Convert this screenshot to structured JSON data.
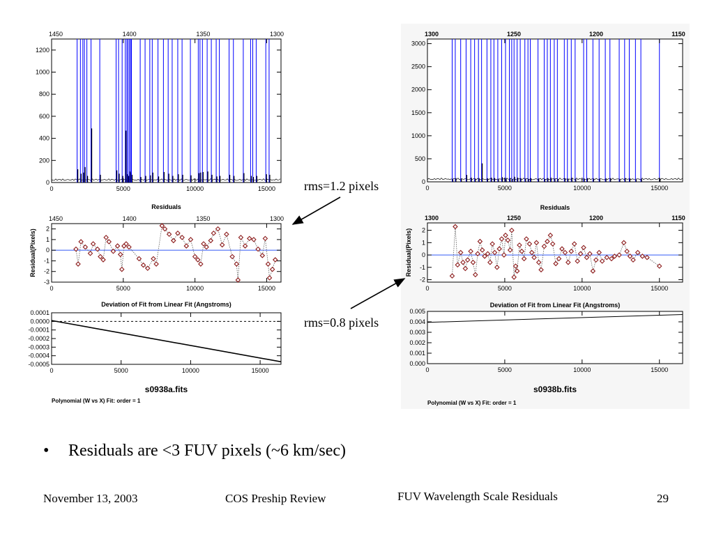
{
  "slide": {
    "bullet": "Residuals are <3 FUV pixels (~6 km/sec)",
    "bullet_icon": "bullet-dot",
    "footer_date": "November 13, 2003",
    "footer_event": "COS Preship Review",
    "footer_title": "FUV Wavelength Scale Residuals",
    "page_number": "29",
    "rms_a": "rms=1.2 pixels",
    "rms_b": "rms=0.8 pixels"
  },
  "colors": {
    "spectrum_line": "#0000ff",
    "zero_line": "#4a6cf7",
    "marker_edge": "#8b1a1a",
    "marker_fill": "#ffffff",
    "connect": "#555555",
    "text": "#000000"
  },
  "chart_data": [
    {
      "id": "a",
      "type": "line",
      "panel": "spectrum",
      "xlim": [
        0,
        16000
      ],
      "ylim": [
        0,
        1300
      ],
      "xticks": [
        0,
        5000,
        10000,
        15000
      ],
      "yticks": [
        0,
        200,
        400,
        600,
        800,
        1000,
        1200
      ],
      "top_axis_ticks": [
        1450,
        1400,
        1350,
        1300
      ],
      "top_axis_label": "Residuals",
      "lines_x": [
        1780,
        2010,
        2180,
        2290,
        2460,
        2750,
        3360,
        4500,
        4670,
        4920,
        5140,
        5250,
        5330,
        5430,
        5510,
        5570,
        6180,
        6520,
        6850,
        7020,
        7420,
        7800,
        8130,
        8410,
        8800,
        9100,
        9680,
        10230,
        10350,
        10520,
        10850,
        11140,
        11480,
        11700,
        12380,
        12680,
        13370,
        13880,
        14030,
        14270,
        14940,
        15170
      ],
      "peak_heights": [
        120,
        80,
        90,
        140,
        60,
        490,
        70,
        110,
        80,
        60,
        470,
        75,
        60,
        100,
        90,
        70,
        50,
        60,
        65,
        90,
        55,
        95,
        80,
        60,
        75,
        70,
        65,
        85,
        90,
        95,
        100,
        70,
        55,
        60,
        70,
        60,
        85,
        60,
        50,
        60,
        75,
        70
      ]
    },
    {
      "id": "a",
      "type": "scatter",
      "panel": "residuals",
      "title": "Deviation of Fit from Linear Fit (Angstroms)",
      "ylabel": "Residual(Pixels)",
      "xlim": [
        0,
        16000
      ],
      "ylim": [
        -3,
        2.5
      ],
      "xticks": [
        0,
        5000,
        10000,
        15000
      ],
      "yticks": [
        -3,
        -2,
        -1,
        0,
        1,
        2
      ],
      "top_axis_ticks": [
        1450,
        1400,
        1350,
        1300
      ],
      "points": [
        [
          1700,
          0.1
        ],
        [
          1850,
          -1.3
        ],
        [
          2050,
          0.8
        ],
        [
          2350,
          0.3
        ],
        [
          2700,
          -0.3
        ],
        [
          2900,
          0.6
        ],
        [
          3200,
          0.1
        ],
        [
          3400,
          -0.6
        ],
        [
          3600,
          -0.9
        ],
        [
          3800,
          1.2
        ],
        [
          4000,
          0.8
        ],
        [
          4300,
          -0.1
        ],
        [
          4600,
          0.4
        ],
        [
          4800,
          -0.4
        ],
        [
          4900,
          -1.8
        ],
        [
          5050,
          0.4
        ],
        [
          5200,
          0.6
        ],
        [
          5400,
          0.3
        ],
        [
          6100,
          -0.8
        ],
        [
          6400,
          -1.4
        ],
        [
          6700,
          -1.7
        ],
        [
          7100,
          -0.8
        ],
        [
          7300,
          -1.3
        ],
        [
          7700,
          2.3
        ],
        [
          7900,
          2.0
        ],
        [
          8200,
          1.5
        ],
        [
          8500,
          0.9
        ],
        [
          8800,
          1.6
        ],
        [
          9100,
          1.2
        ],
        [
          9400,
          0.4
        ],
        [
          9700,
          1.0
        ],
        [
          10000,
          -0.6
        ],
        [
          10200,
          -0.9
        ],
        [
          10400,
          -1.3
        ],
        [
          10600,
          0.6
        ],
        [
          10800,
          0.3
        ],
        [
          11100,
          0.9
        ],
        [
          11300,
          1.6
        ],
        [
          11600,
          2.0
        ],
        [
          11900,
          0.5
        ],
        [
          12200,
          1.5
        ],
        [
          12600,
          -0.6
        ],
        [
          12900,
          -1.3
        ],
        [
          13000,
          -2.8
        ],
        [
          13200,
          1.2
        ],
        [
          13500,
          0.4
        ],
        [
          13800,
          1.1
        ],
        [
          14100,
          1.0
        ],
        [
          14400,
          0.1
        ],
        [
          14700,
          -0.5
        ],
        [
          14900,
          1.1
        ],
        [
          15100,
          -1.3
        ],
        [
          15200,
          -2.6
        ],
        [
          15400,
          -1.8
        ],
        [
          15600,
          -0.9
        ]
      ]
    },
    {
      "id": "a",
      "type": "line",
      "panel": "deviation",
      "xlim": [
        0,
        16500
      ],
      "ylim": [
        -0.0005,
        0.0001
      ],
      "xticks": [
        0,
        5000,
        10000,
        15000
      ],
      "yticks": [
        0.0001,
        0,
        -0.0001,
        -0.0002,
        -0.0003,
        -0.0004,
        -0.0005
      ],
      "ytick_labels": [
        "0.0001",
        "0.0000",
        "-0.0001",
        "-0.0002",
        "-0.0003",
        "-0.0004",
        "-0.0005"
      ],
      "line": [
        [
          0,
          1e-05
        ],
        [
          16500,
          -0.00047
        ]
      ],
      "dashed_zero": 0,
      "xlabel": "s0938a.fits",
      "caption": "Polynomial (W vs X) Fit: order = 1"
    },
    {
      "id": "b",
      "type": "line",
      "panel": "spectrum",
      "xlim": [
        0,
        16500
      ],
      "ylim": [
        0,
        3100
      ],
      "xticks": [
        0,
        5000,
        10000,
        15000
      ],
      "yticks": [
        0,
        500,
        1000,
        1500,
        2000,
        2500,
        3000
      ],
      "top_axis_ticks": [
        1300,
        1250,
        1200,
        1150
      ],
      "top_axis_label": "Residuals",
      "lines_x": [
        1600,
        1800,
        2150,
        2500,
        2800,
        3050,
        3300,
        3500,
        3850,
        4100,
        4300,
        4550,
        4800,
        5050,
        5300,
        5450,
        5600,
        5800,
        6000,
        6300,
        6500,
        6650,
        7150,
        7550,
        7750,
        7950,
        8200,
        8400,
        8850,
        9050,
        9300,
        9550,
        10100,
        10300,
        10700,
        11100,
        11500,
        11800,
        12400,
        12750,
        13050,
        13450,
        13800,
        15000
      ],
      "peak_heights": [
        60,
        80,
        70,
        150,
        90,
        60,
        80,
        400,
        70,
        90,
        80,
        60,
        100,
        70,
        80,
        60,
        110,
        90,
        80,
        70,
        60,
        80,
        70,
        60,
        80,
        90,
        70,
        60,
        80,
        70,
        90,
        60,
        70,
        80,
        60,
        70,
        60,
        80,
        60,
        70,
        60,
        50,
        60,
        70
      ]
    },
    {
      "id": "b",
      "type": "scatter",
      "panel": "residuals",
      "title": "Deviation of Fit from Linear Fit (Angstroms)",
      "ylabel": "Residual(Pixels)",
      "xlim": [
        0,
        16500
      ],
      "ylim": [
        -2.2,
        2.6
      ],
      "xticks": [
        0,
        5000,
        10000,
        15000
      ],
      "yticks": [
        -2,
        -1,
        0,
        1,
        2
      ],
      "top_axis_ticks": [
        1300,
        1250,
        1200,
        1150
      ],
      "points": [
        [
          1600,
          -1.7
        ],
        [
          1800,
          2.3
        ],
        [
          1950,
          -0.8
        ],
        [
          2150,
          0.2
        ],
        [
          2300,
          -0.6
        ],
        [
          2450,
          -1.1
        ],
        [
          2600,
          -0.4
        ],
        [
          2800,
          0.3
        ],
        [
          2950,
          -0.6
        ],
        [
          3100,
          -1.6
        ],
        [
          3250,
          0.1
        ],
        [
          3400,
          1.1
        ],
        [
          3550,
          0.4
        ],
        [
          3700,
          -0.1
        ],
        [
          3900,
          0.1
        ],
        [
          4050,
          -0.6
        ],
        [
          4200,
          0.9
        ],
        [
          4350,
          0.2
        ],
        [
          4500,
          -1.0
        ],
        [
          4650,
          0.5
        ],
        [
          4800,
          1.3
        ],
        [
          4950,
          0.0
        ],
        [
          5050,
          1.6
        ],
        [
          5200,
          1.2
        ],
        [
          5350,
          0.4
        ],
        [
          5450,
          2.0
        ],
        [
          5600,
          -1.8
        ],
        [
          5700,
          -0.9
        ],
        [
          5800,
          -1.3
        ],
        [
          5950,
          0.8
        ],
        [
          6100,
          0.3
        ],
        [
          6250,
          -0.3
        ],
        [
          6400,
          1.3
        ],
        [
          6600,
          0.9
        ],
        [
          6750,
          0.2
        ],
        [
          6900,
          -0.2
        ],
        [
          7050,
          1.0
        ],
        [
          7200,
          -0.6
        ],
        [
          7350,
          -1.2
        ],
        [
          7550,
          0.7
        ],
        [
          7750,
          1.1
        ],
        [
          7950,
          1.6
        ],
        [
          8100,
          0.9
        ],
        [
          8300,
          -0.7
        ],
        [
          8500,
          -0.3
        ],
        [
          8700,
          0.5
        ],
        [
          8900,
          0.2
        ],
        [
          9100,
          -0.6
        ],
        [
          9300,
          0.3
        ],
        [
          9500,
          0.9
        ],
        [
          9700,
          -0.5
        ],
        [
          9900,
          0.1
        ],
        [
          10100,
          0.6
        ],
        [
          10300,
          -0.2
        ],
        [
          10500,
          0.1
        ],
        [
          10700,
          -1.3
        ],
        [
          10900,
          -0.4
        ],
        [
          11100,
          0.2
        ],
        [
          11300,
          -0.5
        ],
        [
          11600,
          -0.2
        ],
        [
          11900,
          -0.3
        ],
        [
          12100,
          -0.1
        ],
        [
          12400,
          0.0
        ],
        [
          12700,
          1.0
        ],
        [
          12900,
          0.3
        ],
        [
          13100,
          -0.1
        ],
        [
          13300,
          -0.4
        ],
        [
          13600,
          0.2
        ],
        [
          13900,
          -0.1
        ],
        [
          14200,
          -0.2
        ],
        [
          15000,
          -0.9
        ]
      ]
    },
    {
      "id": "b",
      "type": "line",
      "panel": "deviation",
      "xlim": [
        0,
        16500
      ],
      "ylim": [
        0,
        0.005
      ],
      "xticks": [
        0,
        5000,
        10000,
        15000
      ],
      "yticks": [
        0,
        0.001,
        0.002,
        0.003,
        0.004,
        0.005
      ],
      "ytick_labels": [
        "0.000",
        "0.001",
        "0.002",
        "0.003",
        "0.004",
        "0.005"
      ],
      "line": [
        [
          0,
          0.00395
        ],
        [
          16500,
          0.0047
        ]
      ],
      "dashed_zero": 0,
      "xlabel": "s0938b.fits",
      "caption": "Polynomial (W vs X) Fit: order = 1"
    }
  ]
}
